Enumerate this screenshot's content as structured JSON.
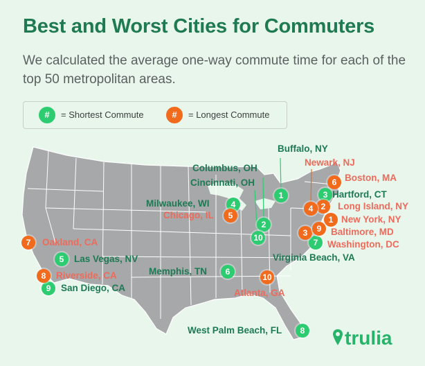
{
  "header": {
    "title": "Best and Worst Cities for Commuters",
    "subtitle": "We calculated the average one-way commute time for each of the top 50 metropolitan areas."
  },
  "legend": {
    "symbol": "#",
    "shortest_label": "= Shortest Commute",
    "longest_label": "= Longest Commute"
  },
  "colors": {
    "shortest": "#2ecc71",
    "longest": "#f26a1b",
    "shortest_text": "#1d7a53",
    "longest_text": "#ee6a5a",
    "map_fill": "#a6a8aa",
    "state_border": "#ffffff"
  },
  "shortest": [
    {
      "rank": "1",
      "city": "Buffalo, NY"
    },
    {
      "rank": "2",
      "city": "Columbus, OH"
    },
    {
      "rank": "3",
      "city": "Hartford, CT"
    },
    {
      "rank": "4",
      "city": "Milwaukee, WI"
    },
    {
      "rank": "5",
      "city": "Las Vegas, NV"
    },
    {
      "rank": "6",
      "city": "Memphis, TN"
    },
    {
      "rank": "7",
      "city": "Virginia Beach, VA"
    },
    {
      "rank": "8",
      "city": "West Palm Beach, FL"
    },
    {
      "rank": "9",
      "city": "San Diego, CA"
    },
    {
      "rank": "10",
      "city": "Cincinnati, OH"
    }
  ],
  "longest": [
    {
      "rank": "1",
      "city": "New York, NY"
    },
    {
      "rank": "2",
      "city": "Long Island, NY"
    },
    {
      "rank": "3",
      "city": "Washington, DC"
    },
    {
      "rank": "4",
      "city": "Newark, NJ"
    },
    {
      "rank": "5",
      "city": "Chicago, IL"
    },
    {
      "rank": "6",
      "city": "Boston, MA"
    },
    {
      "rank": "7",
      "city": "Oakland, CA"
    },
    {
      "rank": "8",
      "city": "Riverside, CA"
    },
    {
      "rank": "9",
      "city": "Baltimore, MD"
    },
    {
      "rank": "10",
      "city": "Atlanta, GA"
    }
  ],
  "brand": {
    "logo_text": "trulia"
  }
}
